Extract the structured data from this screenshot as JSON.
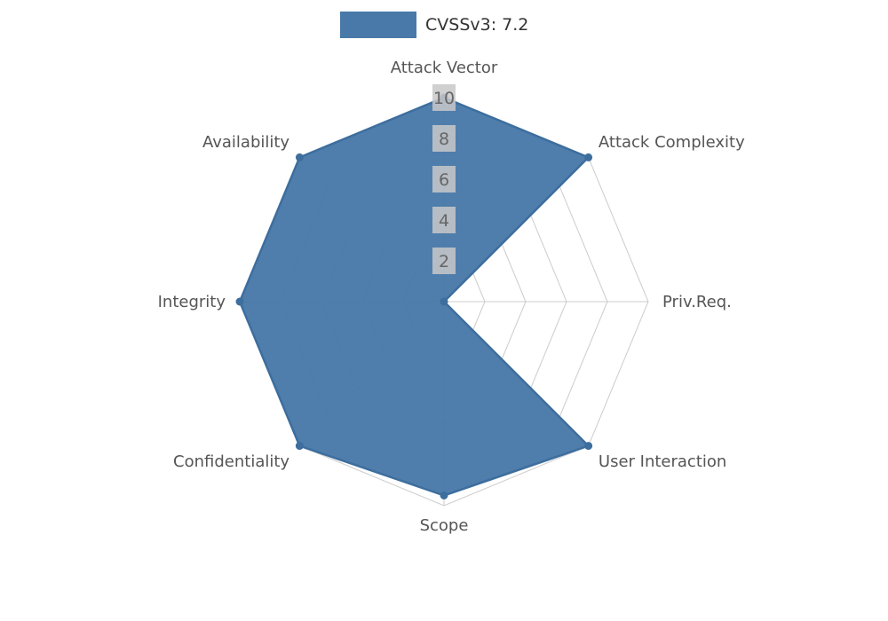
{
  "legend": {
    "label": "CVSSv3: 7.2",
    "swatch_color": "#4879a9"
  },
  "chart_data": {
    "type": "radar",
    "title": "CVSSv3: 7.2",
    "categories": [
      "Attack Vector",
      "Attack Complexity",
      "Priv.Req.",
      "User Interaction",
      "Scope",
      "Confidentiality",
      "Integrity",
      "Availability"
    ],
    "series": [
      {
        "name": "CVSSv3: 7.2",
        "values": [
          10,
          10,
          0,
          10,
          9.5,
          10,
          10,
          10
        ]
      }
    ],
    "scale": {
      "min": 0,
      "max": 10,
      "ticks": [
        2,
        4,
        6,
        8,
        10
      ]
    },
    "layout_hints": {
      "legend_position": "top-center",
      "grid": "spider-web",
      "axis_start": "top",
      "direction": "clockwise"
    },
    "colors": {
      "fill": "#4879a9",
      "stroke": "#3d6e9e",
      "grid": "#cccccc",
      "tick_bg": "#c8c8c8",
      "tick_text": "#666666",
      "label": "#555555"
    }
  }
}
